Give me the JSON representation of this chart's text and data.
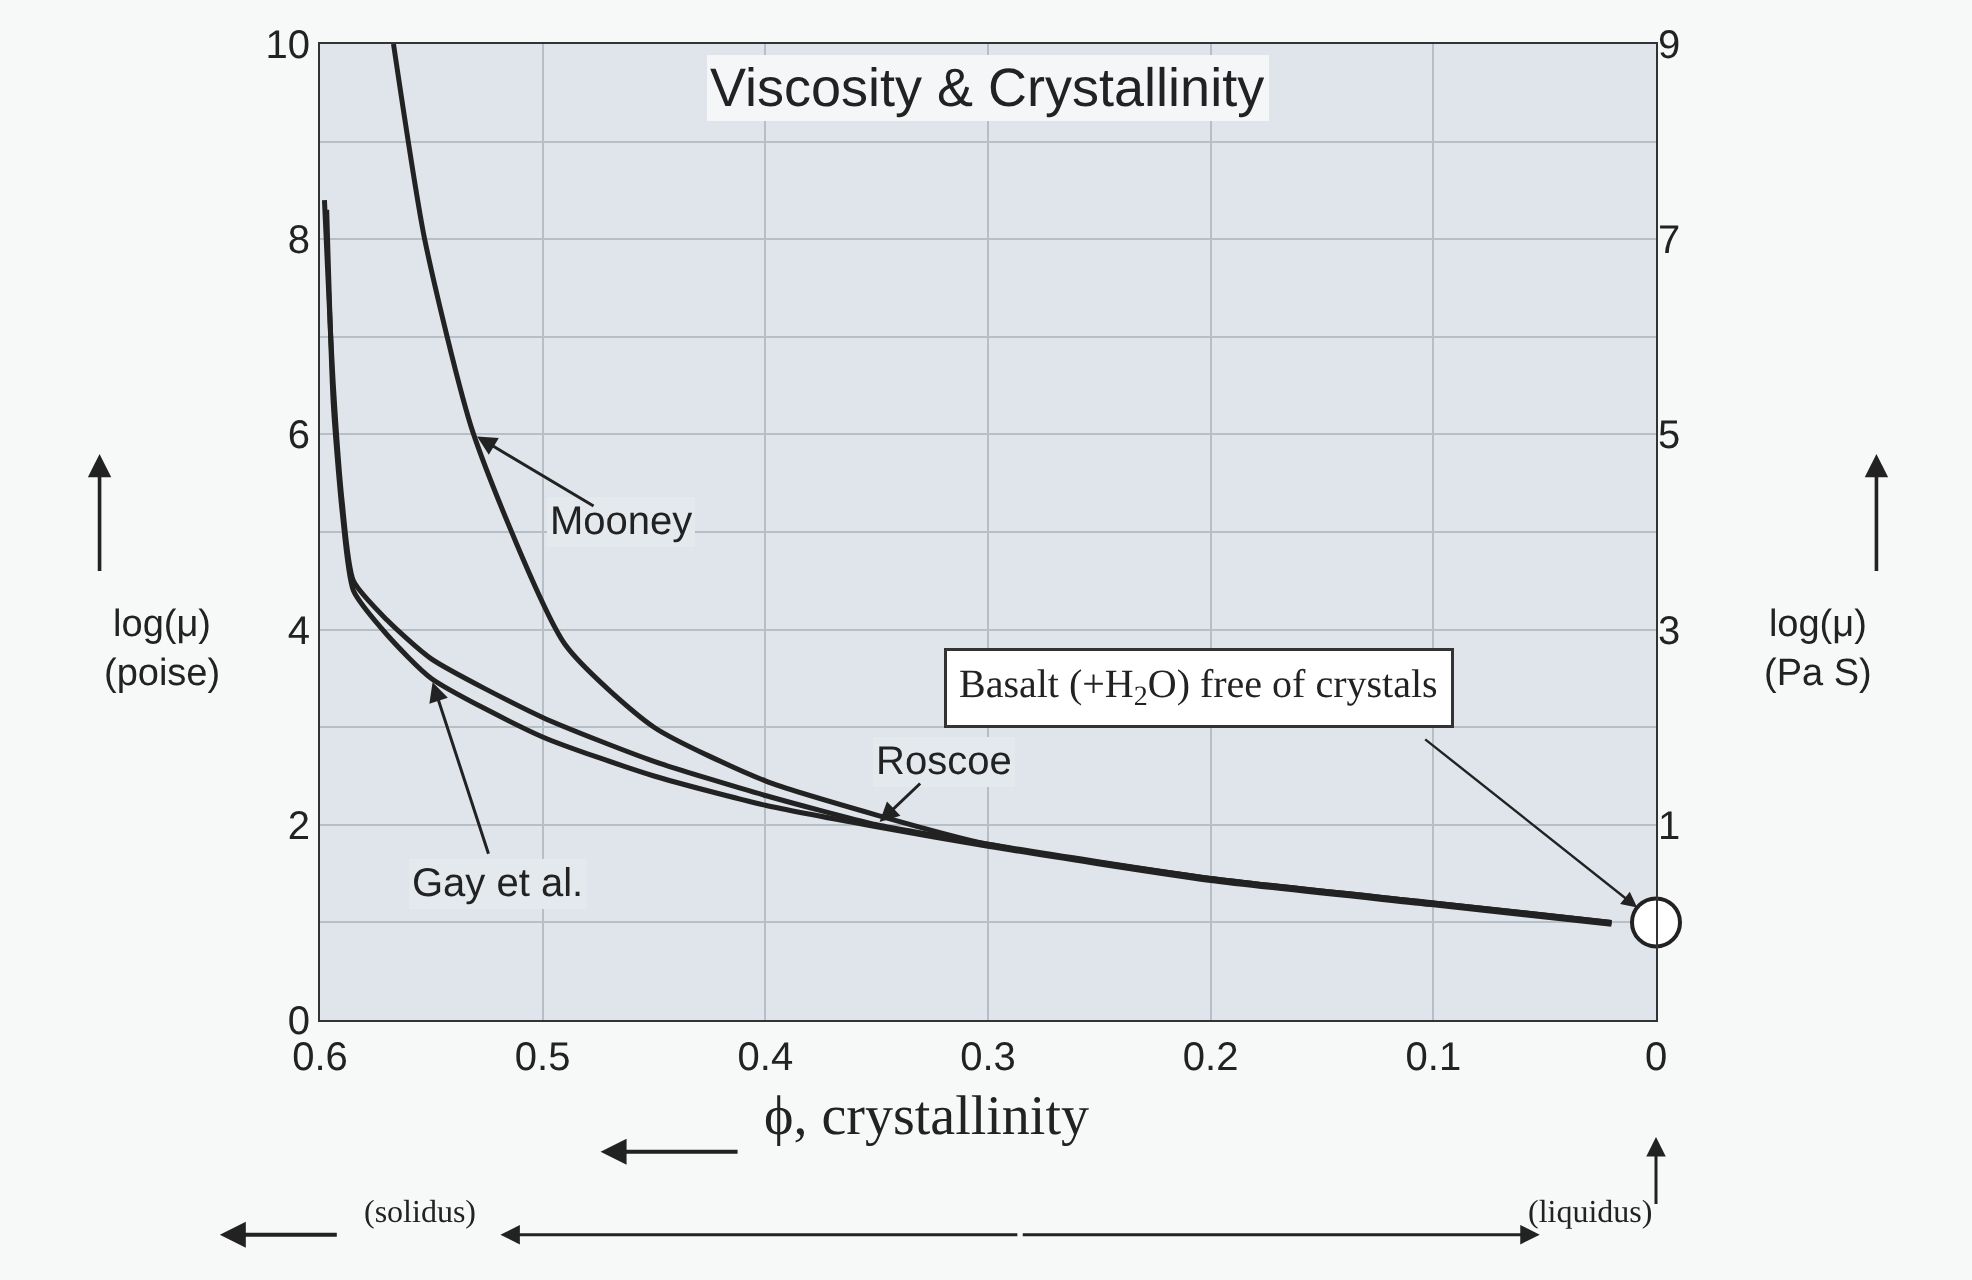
{
  "chart_data": {
    "type": "line",
    "title": "Viscosity & Crystallinity",
    "xlabel": "ϕ, crystallinity",
    "ylabel": "log(μ)\n(poise)",
    "y2label": "log(μ)\n(Pa S)",
    "xlim": [
      0.6,
      0
    ],
    "xticks": [
      0.6,
      0.5,
      0.4,
      0.3,
      0.2,
      0.1,
      0
    ],
    "ylim": [
      0,
      10
    ],
    "yticks": [
      0,
      2,
      4,
      6,
      8,
      10
    ],
    "y2lim": [
      -1,
      9
    ],
    "y2ticks": [
      1,
      3,
      5,
      7,
      9
    ],
    "grid": true,
    "legend": false,
    "marker": "none",
    "line_style": "solid",
    "series": [
      {
        "name": "Mooney",
        "color": "#222222",
        "x": [
          0.567,
          0.553,
          0.531,
          0.49,
          0.45,
          0.4,
          0.35,
          0.3,
          0.2,
          0.1,
          0.02
        ],
        "values": [
          10,
          8,
          6,
          3.85,
          3.0,
          2.45,
          2.1,
          1.8,
          1.45,
          1.2,
          1.0
        ]
      },
      {
        "name": "Roscoe",
        "color": "#222222",
        "x": [
          0.598,
          0.594,
          0.59,
          0.585,
          0.57,
          0.55,
          0.5,
          0.45,
          0.4,
          0.35,
          0.3,
          0.2,
          0.1,
          0.02
        ],
        "values": [
          8.4,
          6.5,
          5.3,
          4.5,
          4.1,
          3.7,
          3.1,
          2.65,
          2.3,
          2.0,
          1.8,
          1.45,
          1.2,
          1.0
        ]
      },
      {
        "name": "Gay et al.",
        "color": "#222222",
        "x": [
          0.597,
          0.594,
          0.59,
          0.585,
          0.57,
          0.55,
          0.5,
          0.45,
          0.4,
          0.35,
          0.3,
          0.2,
          0.1,
          0.02
        ],
        "values": [
          8.3,
          6.3,
          5.2,
          4.4,
          3.95,
          3.5,
          2.9,
          2.5,
          2.2,
          1.98,
          1.78,
          1.43,
          1.18,
          0.98
        ]
      },
      {
        "type": "scatter",
        "marker": "circle",
        "color": "#ffffff",
        "x": [
          0
        ],
        "values": [
          1.0
        ]
      }
    ],
    "annotations": [
      {
        "text": "Basalt (+H$_{2}$O) free of crystals",
        "x": 0,
        "y": 1.0
      },
      "(solidus)",
      "(liquidus)"
    ]
  }
}
